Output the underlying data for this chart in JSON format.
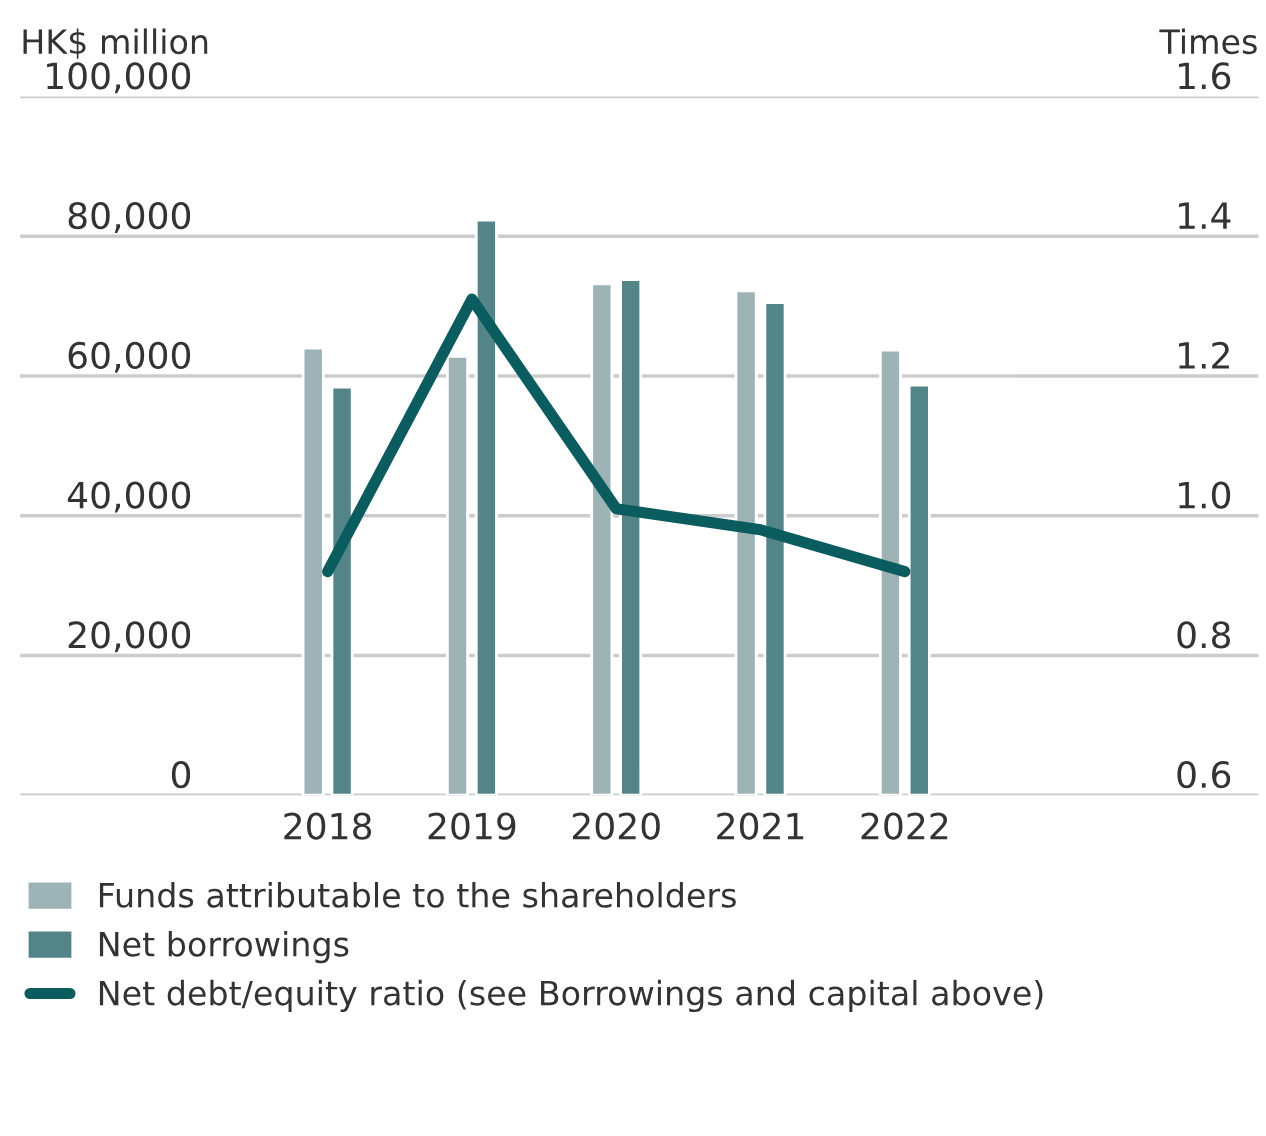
{
  "chart_data": {
    "type": "bar",
    "ylabel": "HK$ million",
    "y2label": "Times",
    "categories": [
      "2018",
      "2019",
      "2020",
      "2021",
      "2022"
    ],
    "series": [
      {
        "name": "Funds attributable to the shareholders",
        "color": "#9db3b6",
        "values": [
          64000,
          62800,
          73200,
          72200,
          63700
        ]
      },
      {
        "name": "Net borrowings",
        "color": "#538488",
        "values": [
          58400,
          82300,
          73800,
          70500,
          58700
        ]
      },
      {
        "name": "Net debt/equity ratio (see Borrowings and capital above)",
        "type": "line",
        "axis": "y2",
        "color": "#0a5c5f",
        "values": [
          0.92,
          1.31,
          1.01,
          0.98,
          0.92
        ]
      }
    ],
    "ylim": [
      0,
      100000
    ],
    "yticks": [
      {
        "value": 0,
        "label": "0"
      },
      {
        "value": 20000,
        "label": "20,000"
      },
      {
        "value": 40000,
        "label": "40,000"
      },
      {
        "value": 60000,
        "label": "60,000"
      },
      {
        "value": 80000,
        "label": "80,000"
      },
      {
        "value": 100000,
        "label": "100,000"
      }
    ],
    "y2lim": [
      0.6,
      1.6
    ],
    "y2ticks": [
      0.6,
      0.8,
      {
        "value": 1.0,
        "label": "1.0"
      },
      1.2,
      1.4,
      1.6
    ],
    "grid": "y",
    "legend": "bottom"
  }
}
